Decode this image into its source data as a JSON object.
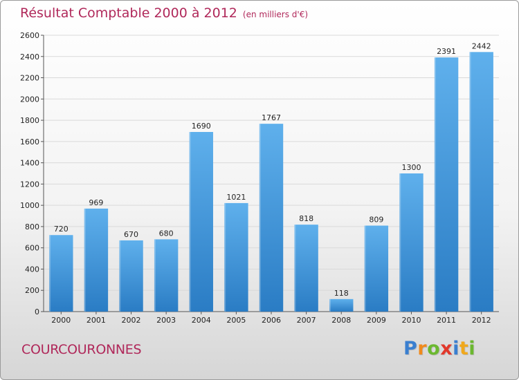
{
  "chart_data": {
    "type": "bar",
    "title": "Résultat Comptable 2000 à 2012",
    "subtitle": "(en milliers d'€)",
    "categories": [
      "2000",
      "2001",
      "2002",
      "2003",
      "2004",
      "2005",
      "2006",
      "2007",
      "2008",
      "2009",
      "2010",
      "2011",
      "2012"
    ],
    "values": [
      720,
      969,
      670,
      680,
      1690,
      1021,
      1767,
      818,
      118,
      809,
      1300,
      2391,
      2442
    ],
    "xlabel": "",
    "ylabel": "",
    "ylim": [
      0,
      2600
    ],
    "yticks": [
      0,
      200,
      400,
      600,
      800,
      1000,
      1200,
      1400,
      1600,
      1800,
      2000,
      2200,
      2400,
      2600
    ],
    "grid": true,
    "bar_color": "#4c9fe0",
    "data_labels": true
  },
  "commune": "COURCOURONNES",
  "logo": {
    "letters": [
      {
        "ch": "P",
        "color": "#3a7fd0"
      },
      {
        "ch": "r",
        "color": "#f08a1c"
      },
      {
        "ch": "o",
        "color": "#6bb82f"
      },
      {
        "ch": "x",
        "color": "#e2382b"
      },
      {
        "ch": "i",
        "color": "#3a7fd0"
      },
      {
        "ch": "t",
        "color": "#f0a81c"
      },
      {
        "ch": "i",
        "color": "#6bb82f"
      }
    ]
  },
  "colors": {
    "title": "#b0285a",
    "bar_light": "#5fb0ec",
    "bar_dark": "#2a7cc4"
  }
}
